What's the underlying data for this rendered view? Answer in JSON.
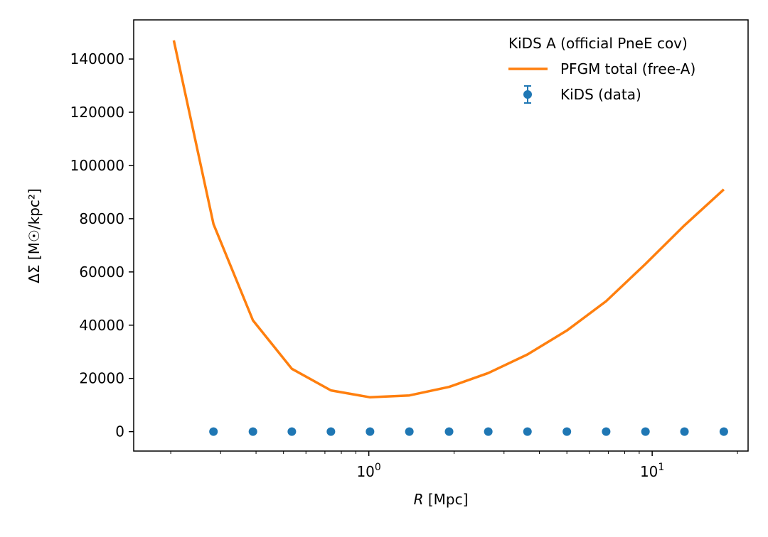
{
  "chart_data": {
    "type": "line",
    "title": "",
    "xlabel_italic": "R",
    "xlabel_rest": " [Mpc]",
    "ylabel": "ΔΣ [M☉/kpc²]",
    "xscale": "log",
    "xlim": [
      0.148,
      21.8
    ],
    "ylim": [
      -7300,
      154700
    ],
    "xticks_major": [
      {
        "value": 1,
        "label": "10",
        "exp": "0"
      },
      {
        "value": 10,
        "label": "10",
        "exp": "1"
      }
    ],
    "yticks": [
      0,
      20000,
      40000,
      60000,
      80000,
      100000,
      120000,
      140000
    ],
    "grid": false,
    "legend": {
      "title": "KiDS A (official PneE cov)",
      "placement": "top-right",
      "entries": [
        "PFGM total (free-A)",
        "KiDS (data)"
      ]
    },
    "series": [
      {
        "name": "PFGM total (free-A)",
        "kind": "line",
        "color": "#ff7f0e",
        "x": [
          0.205,
          0.283,
          0.39,
          0.535,
          0.735,
          1.01,
          1.39,
          1.92,
          2.64,
          3.63,
          5.0,
          6.88,
          9.47,
          13.0,
          17.9
        ],
        "y": [
          147000,
          78000,
          41800,
          23600,
          15500,
          12900,
          13600,
          16800,
          22000,
          29000,
          38000,
          49000,
          63000,
          77500,
          91000
        ]
      },
      {
        "name": "KiDS (data)",
        "kind": "scatter",
        "color": "#1f77b4",
        "x": [
          0.283,
          0.39,
          0.535,
          0.735,
          1.01,
          1.39,
          1.92,
          2.64,
          3.63,
          5.0,
          6.88,
          9.47,
          13.0,
          17.9
        ],
        "y": [
          0,
          0,
          0,
          0,
          0,
          0,
          0,
          0,
          0,
          0,
          0,
          0,
          0,
          0
        ]
      }
    ]
  }
}
